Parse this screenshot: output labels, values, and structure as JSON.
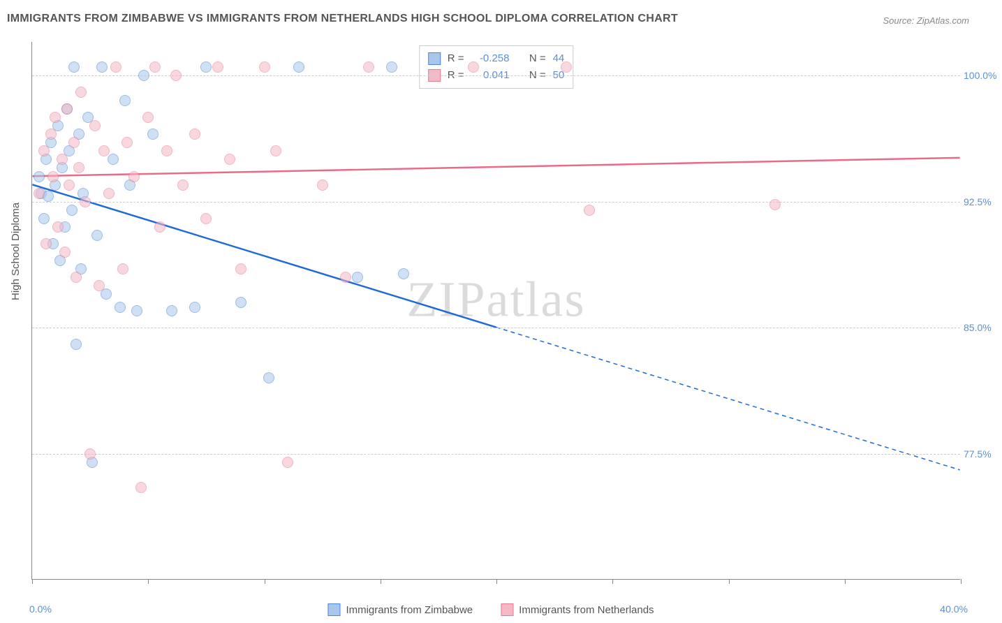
{
  "title": "IMMIGRANTS FROM ZIMBABWE VS IMMIGRANTS FROM NETHERLANDS HIGH SCHOOL DIPLOMA CORRELATION CHART",
  "source": "Source: ZipAtlas.com",
  "y_axis_label": "High School Diploma",
  "watermark": "ZIPatlas",
  "chart": {
    "type": "scatter",
    "xlim": [
      0,
      40
    ],
    "ylim": [
      70,
      102
    ],
    "x_tick_positions": [
      0,
      5,
      10,
      15,
      20,
      25,
      30,
      35,
      40
    ],
    "x_min_label": "0.0%",
    "x_max_label": "40.0%",
    "y_ticks": [
      {
        "value": 100.0,
        "label": "100.0%"
      },
      {
        "value": 92.5,
        "label": "92.5%"
      },
      {
        "value": 85.0,
        "label": "85.0%"
      },
      {
        "value": 77.5,
        "label": "77.5%"
      }
    ],
    "grid_color": "#cccccc",
    "axis_color": "#888888",
    "background_color": "#ffffff",
    "tick_label_color": "#5b8fd6",
    "point_radius": 8,
    "point_opacity": 0.55,
    "point_stroke_width": 1.2
  },
  "series": [
    {
      "name": "Immigrants from Zimbabwe",
      "color_fill": "#a9c7ec",
      "color_stroke": "#4f86d1",
      "trend_color": "#1f6bd6",
      "trend_width": 2.5,
      "r_value": "-0.258",
      "n_value": "44",
      "trend": {
        "x1": 0,
        "y1": 93.5,
        "x2_solid": 20,
        "y2_solid": 85.0,
        "x2_dash": 40,
        "y2_dash": 76.5
      },
      "points": [
        [
          0.3,
          94.0
        ],
        [
          0.4,
          93.0
        ],
        [
          0.5,
          91.5
        ],
        [
          0.6,
          95.0
        ],
        [
          0.7,
          92.8
        ],
        [
          0.8,
          96.0
        ],
        [
          0.9,
          90.0
        ],
        [
          1.0,
          93.5
        ],
        [
          1.1,
          97.0
        ],
        [
          1.2,
          89.0
        ],
        [
          1.3,
          94.5
        ],
        [
          1.4,
          91.0
        ],
        [
          1.5,
          98.0
        ],
        [
          1.6,
          95.5
        ],
        [
          1.7,
          92.0
        ],
        [
          1.8,
          100.5
        ],
        [
          1.9,
          84.0
        ],
        [
          2.0,
          96.5
        ],
        [
          2.1,
          88.5
        ],
        [
          2.2,
          93.0
        ],
        [
          2.4,
          97.5
        ],
        [
          2.6,
          77.0
        ],
        [
          2.8,
          90.5
        ],
        [
          3.0,
          100.5
        ],
        [
          3.2,
          87.0
        ],
        [
          3.5,
          95.0
        ],
        [
          3.8,
          86.2
        ],
        [
          4.0,
          98.5
        ],
        [
          4.2,
          93.5
        ],
        [
          4.5,
          86.0
        ],
        [
          4.8,
          100.0
        ],
        [
          5.2,
          96.5
        ],
        [
          6.0,
          86.0
        ],
        [
          7.0,
          86.2
        ],
        [
          7.5,
          100.5
        ],
        [
          9.0,
          86.5
        ],
        [
          10.2,
          82.0
        ],
        [
          11.5,
          100.5
        ],
        [
          14.0,
          88.0
        ],
        [
          15.5,
          100.5
        ],
        [
          16.0,
          88.2
        ]
      ]
    },
    {
      "name": "Immigrants from Netherlands",
      "color_fill": "#f5b8c6",
      "color_stroke": "#e57a94",
      "trend_color": "#e86b8a",
      "trend_width": 2.5,
      "r_value": "0.041",
      "n_value": "50",
      "trend": {
        "x1": 0,
        "y1": 94.0,
        "x2_solid": 40,
        "y2_solid": 95.1,
        "x2_dash": 40,
        "y2_dash": 95.1
      },
      "points": [
        [
          0.3,
          93.0
        ],
        [
          0.5,
          95.5
        ],
        [
          0.6,
          90.0
        ],
        [
          0.8,
          96.5
        ],
        [
          0.9,
          94.0
        ],
        [
          1.0,
          97.5
        ],
        [
          1.1,
          91.0
        ],
        [
          1.3,
          95.0
        ],
        [
          1.4,
          89.5
        ],
        [
          1.5,
          98.0
        ],
        [
          1.6,
          93.5
        ],
        [
          1.8,
          96.0
        ],
        [
          1.9,
          88.0
        ],
        [
          2.0,
          94.5
        ],
        [
          2.1,
          99.0
        ],
        [
          2.3,
          92.5
        ],
        [
          2.5,
          77.5
        ],
        [
          2.7,
          97.0
        ],
        [
          2.9,
          87.5
        ],
        [
          3.1,
          95.5
        ],
        [
          3.3,
          93.0
        ],
        [
          3.6,
          100.5
        ],
        [
          3.9,
          88.5
        ],
        [
          4.1,
          96.0
        ],
        [
          4.4,
          94.0
        ],
        [
          4.7,
          75.5
        ],
        [
          5.0,
          97.5
        ],
        [
          5.3,
          100.5
        ],
        [
          5.5,
          91.0
        ],
        [
          5.8,
          95.5
        ],
        [
          6.2,
          100.0
        ],
        [
          6.5,
          93.5
        ],
        [
          7.0,
          96.5
        ],
        [
          7.5,
          91.5
        ],
        [
          8.0,
          100.5
        ],
        [
          8.5,
          95.0
        ],
        [
          9.0,
          88.5
        ],
        [
          10.0,
          100.5
        ],
        [
          10.5,
          95.5
        ],
        [
          11.0,
          77.0
        ],
        [
          12.5,
          93.5
        ],
        [
          13.5,
          88.0
        ],
        [
          14.5,
          100.5
        ],
        [
          19.0,
          100.5
        ],
        [
          23.0,
          100.5
        ],
        [
          24.0,
          92.0
        ],
        [
          32.0,
          92.3
        ]
      ]
    }
  ],
  "legend_top": {
    "r_label": "R =",
    "n_label": "N ="
  },
  "legend_bottom": {
    "items": [
      "Immigrants from Zimbabwe",
      "Immigrants from Netherlands"
    ]
  }
}
